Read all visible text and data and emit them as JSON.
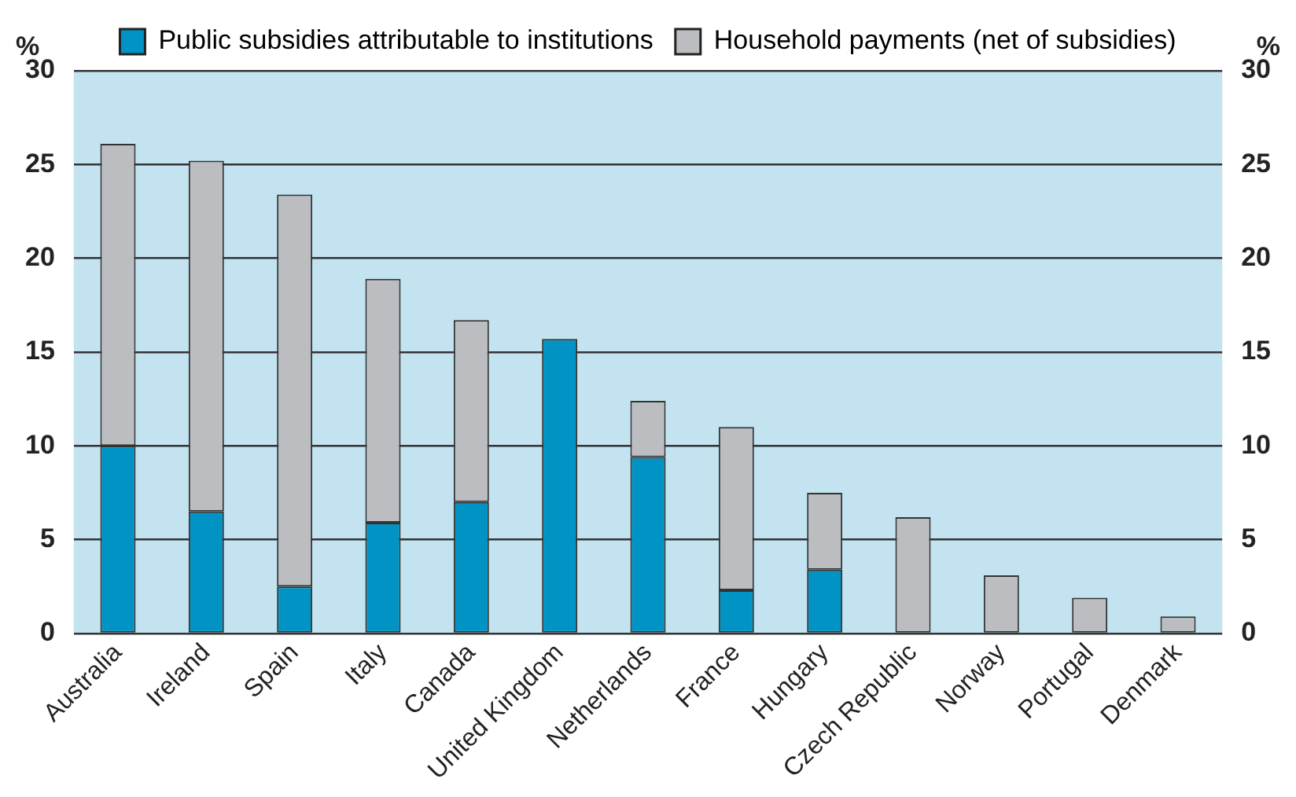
{
  "chart_data": {
    "type": "bar",
    "stacked": true,
    "ylabel": "%",
    "y2label": "%",
    "categories": [
      "Australia",
      "Ireland",
      "Spain",
      "Italy",
      "Canada",
      "United Kingdom",
      "Netherlands",
      "France",
      "Hungary",
      "Czech Republic",
      "Norway",
      "Portugal",
      "Denmark"
    ],
    "series": [
      {
        "name": "Public subsidies attributable to institutions",
        "color": "#0093c4",
        "values": [
          10.0,
          6.5,
          2.5,
          5.9,
          7.0,
          15.7,
          9.4,
          2.3,
          3.4,
          null,
          null,
          null,
          null
        ]
      },
      {
        "name": "Household payments (net of subsidies)",
        "color": "#bcbdc1",
        "values": [
          16.1,
          18.7,
          20.9,
          13.0,
          9.7,
          null,
          3.0,
          8.7,
          4.1,
          6.2,
          3.1,
          1.9,
          0.9
        ]
      }
    ],
    "ylim": [
      0,
      30
    ],
    "yticks": [
      0,
      5,
      10,
      15,
      20,
      25,
      30
    ],
    "y2lim": [
      0,
      30
    ],
    "y2ticks": [
      0,
      5,
      10,
      15,
      20,
      25,
      30
    ],
    "grid": "y",
    "legend": "top"
  }
}
